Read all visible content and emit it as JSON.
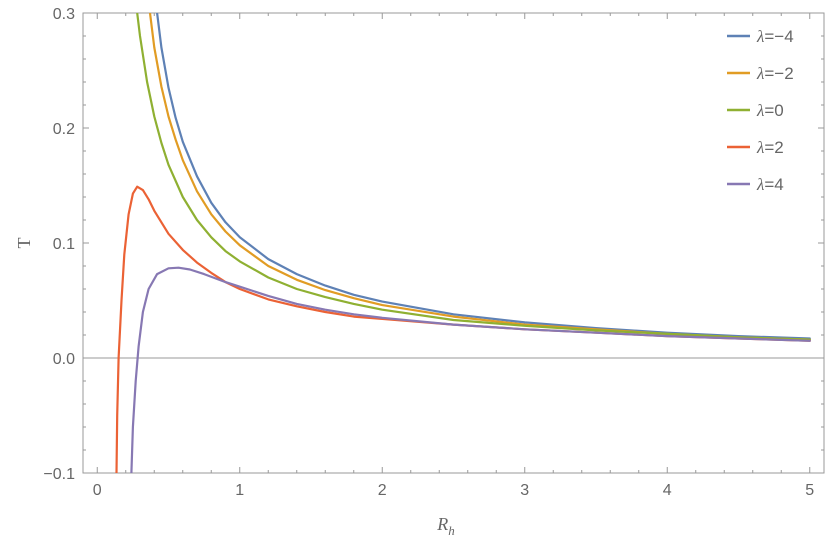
{
  "chart_data": {
    "type": "line",
    "title": "",
    "xlabel": "R",
    "xlabel_sub": "h",
    "ylabel": "T",
    "xlim": [
      -0.1,
      5.1
    ],
    "ylim": [
      -0.1,
      0.3
    ],
    "x_ticks": [
      0,
      1,
      2,
      3,
      4,
      5
    ],
    "x_tick_labels": [
      "0",
      "1",
      "2",
      "3",
      "4",
      "5"
    ],
    "y_ticks": [
      -0.1,
      0.0,
      0.1,
      0.2,
      0.3
    ],
    "y_tick_labels": [
      "−0.1",
      "0.0",
      "0.1",
      "0.2",
      "0.3"
    ],
    "grid": false,
    "zero_line": true,
    "legend_position": "top-right",
    "series": [
      {
        "name": "=−4",
        "color": "#5E81B5",
        "points": [
          [
            0.42,
            0.3
          ],
          [
            0.45,
            0.27
          ],
          [
            0.5,
            0.235
          ],
          [
            0.55,
            0.209
          ],
          [
            0.6,
            0.188
          ],
          [
            0.7,
            0.158
          ],
          [
            0.8,
            0.135
          ],
          [
            0.9,
            0.118
          ],
          [
            1.0,
            0.105
          ],
          [
            1.2,
            0.086
          ],
          [
            1.4,
            0.073
          ],
          [
            1.6,
            0.063
          ],
          [
            1.8,
            0.055
          ],
          [
            2.0,
            0.049
          ],
          [
            2.5,
            0.038
          ],
          [
            3.0,
            0.031
          ],
          [
            3.5,
            0.026
          ],
          [
            4.0,
            0.022
          ],
          [
            4.5,
            0.019
          ],
          [
            5.0,
            0.017
          ]
        ]
      },
      {
        "name": "=−2",
        "color": "#E19C24",
        "points": [
          [
            0.37,
            0.3
          ],
          [
            0.4,
            0.27
          ],
          [
            0.45,
            0.236
          ],
          [
            0.5,
            0.21
          ],
          [
            0.55,
            0.19
          ],
          [
            0.6,
            0.172
          ],
          [
            0.7,
            0.145
          ],
          [
            0.8,
            0.125
          ],
          [
            0.9,
            0.11
          ],
          [
            1.0,
            0.098
          ],
          [
            1.2,
            0.08
          ],
          [
            1.4,
            0.068
          ],
          [
            1.6,
            0.059
          ],
          [
            1.8,
            0.052
          ],
          [
            2.0,
            0.046
          ],
          [
            2.5,
            0.036
          ],
          [
            3.0,
            0.029
          ],
          [
            3.5,
            0.025
          ],
          [
            4.0,
            0.021
          ],
          [
            4.5,
            0.018
          ],
          [
            5.0,
            0.016
          ]
        ]
      },
      {
        "name": "=0",
        "color": "#8FB032",
        "points": [
          [
            0.28,
            0.3
          ],
          [
            0.3,
            0.28
          ],
          [
            0.35,
            0.24
          ],
          [
            0.4,
            0.21
          ],
          [
            0.45,
            0.187
          ],
          [
            0.5,
            0.168
          ],
          [
            0.6,
            0.14
          ],
          [
            0.7,
            0.12
          ],
          [
            0.8,
            0.105
          ],
          [
            0.9,
            0.093
          ],
          [
            1.0,
            0.084
          ],
          [
            1.2,
            0.07
          ],
          [
            1.4,
            0.06
          ],
          [
            1.6,
            0.053
          ],
          [
            1.8,
            0.047
          ],
          [
            2.0,
            0.042
          ],
          [
            2.5,
            0.033
          ],
          [
            3.0,
            0.028
          ],
          [
            3.5,
            0.024
          ],
          [
            4.0,
            0.021
          ],
          [
            4.5,
            0.018
          ],
          [
            5.0,
            0.016
          ]
        ]
      },
      {
        "name": "=2",
        "color": "#EB6235",
        "points": [
          [
            0.135,
            -0.1
          ],
          [
            0.14,
            -0.05
          ],
          [
            0.15,
            0.0
          ],
          [
            0.17,
            0.05
          ],
          [
            0.19,
            0.09
          ],
          [
            0.22,
            0.125
          ],
          [
            0.25,
            0.143
          ],
          [
            0.28,
            0.149
          ],
          [
            0.32,
            0.146
          ],
          [
            0.36,
            0.138
          ],
          [
            0.4,
            0.128
          ],
          [
            0.5,
            0.108
          ],
          [
            0.6,
            0.094
          ],
          [
            0.7,
            0.083
          ],
          [
            0.8,
            0.074
          ],
          [
            0.9,
            0.066
          ],
          [
            1.0,
            0.06
          ],
          [
            1.2,
            0.051
          ],
          [
            1.4,
            0.045
          ],
          [
            1.6,
            0.04
          ],
          [
            1.8,
            0.036
          ],
          [
            2.0,
            0.034
          ],
          [
            2.5,
            0.029
          ],
          [
            3.0,
            0.025
          ],
          [
            3.5,
            0.022
          ],
          [
            4.0,
            0.019
          ],
          [
            4.5,
            0.017
          ],
          [
            5.0,
            0.015
          ]
        ]
      },
      {
        "name": "=4",
        "color": "#8778B3",
        "points": [
          [
            0.24,
            -0.1
          ],
          [
            0.25,
            -0.06
          ],
          [
            0.27,
            -0.02
          ],
          [
            0.29,
            0.01
          ],
          [
            0.32,
            0.04
          ],
          [
            0.36,
            0.06
          ],
          [
            0.42,
            0.073
          ],
          [
            0.5,
            0.078
          ],
          [
            0.57,
            0.0785
          ],
          [
            0.65,
            0.077
          ],
          [
            0.75,
            0.073
          ],
          [
            0.9,
            0.066
          ],
          [
            1.0,
            0.062
          ],
          [
            1.2,
            0.054
          ],
          [
            1.4,
            0.047
          ],
          [
            1.6,
            0.042
          ],
          [
            1.8,
            0.038
          ],
          [
            2.0,
            0.035
          ],
          [
            2.5,
            0.029
          ],
          [
            3.0,
            0.025
          ],
          [
            3.5,
            0.022
          ],
          [
            4.0,
            0.019
          ],
          [
            4.5,
            0.017
          ],
          [
            5.0,
            0.015
          ]
        ]
      }
    ]
  }
}
